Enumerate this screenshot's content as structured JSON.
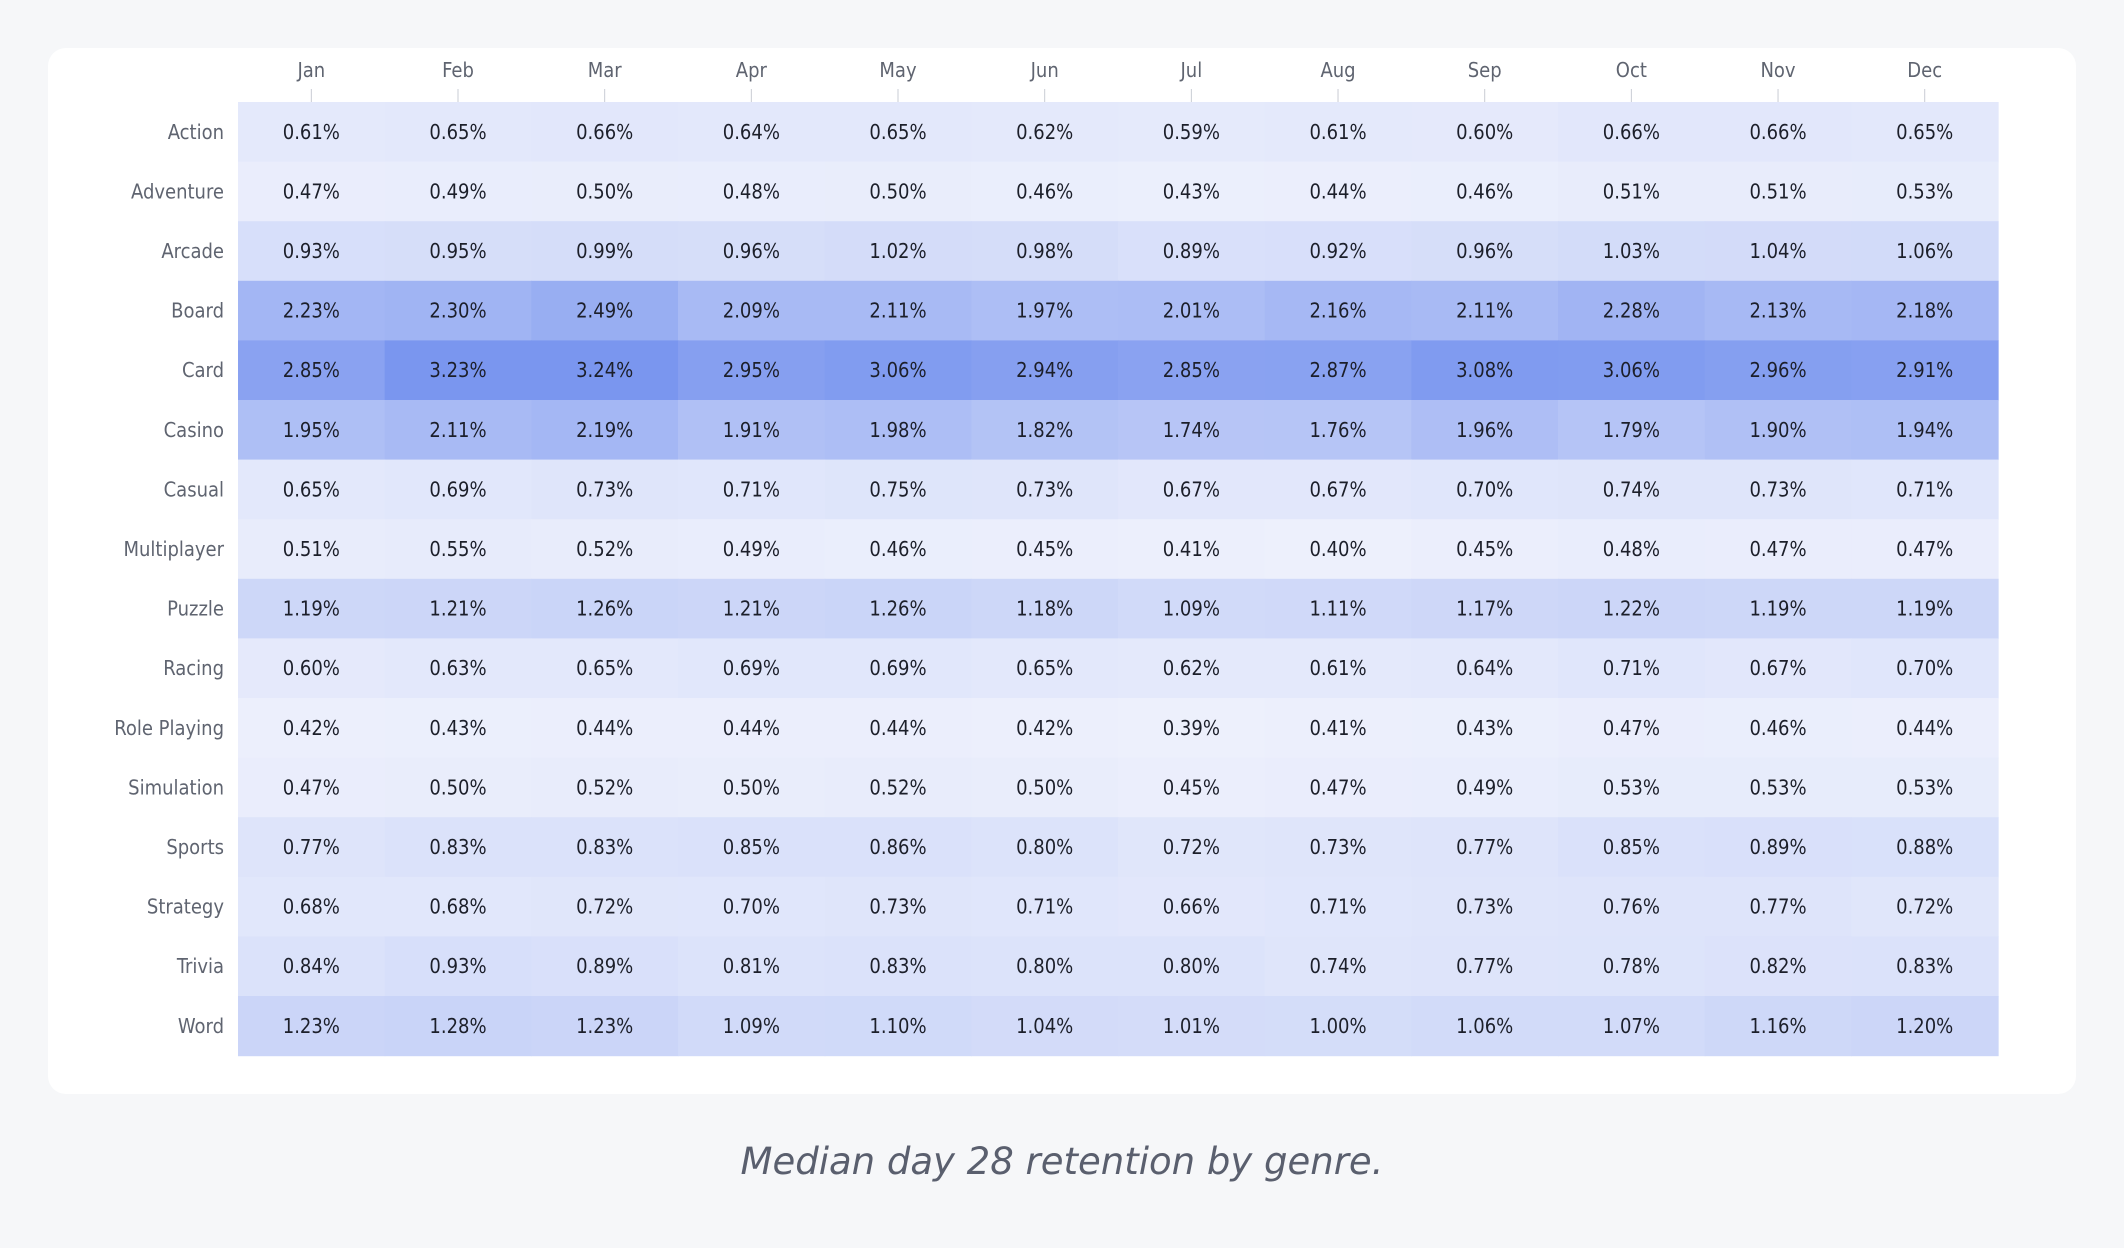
{
  "caption": "Median day 28 retention by genre.",
  "colors": {
    "background": "#f6f7f9",
    "card": "#ffffff",
    "scale_low": "#edf0fc",
    "scale_high": "#7a96ef",
    "cell_text": "#1c1f2a",
    "axis_text": "#5f6470"
  },
  "chart_data": {
    "type": "heatmap",
    "x": [
      "Jan",
      "Feb",
      "Mar",
      "Apr",
      "May",
      "Jun",
      "Jul",
      "Aug",
      "Sep",
      "Oct",
      "Nov",
      "Dec"
    ],
    "y": [
      "Action",
      "Adventure",
      "Arcade",
      "Board",
      "Card",
      "Casino",
      "Casual",
      "Multiplayer",
      "Puzzle",
      "Racing",
      "Role Playing",
      "Simulation",
      "Sports",
      "Strategy",
      "Trivia",
      "Word"
    ],
    "labels": [
      [
        "0.61%",
        "0.65%",
        "0.66%",
        "0.64%",
        "0.65%",
        "0.62%",
        "0.59%",
        "0.61%",
        "0.60%",
        "0.66%",
        "0.66%",
        "0.65%"
      ],
      [
        "0.47%",
        "0.49%",
        "0.50%",
        "0.48%",
        "0.50%",
        "0.46%",
        "0.43%",
        "0.44%",
        "0.46%",
        "0.51%",
        "0.51%",
        "0.53%"
      ],
      [
        "0.93%",
        "0.95%",
        "0.99%",
        "0.96%",
        "1.02%",
        "0.98%",
        "0.89%",
        "0.92%",
        "0.96%",
        "1.03%",
        "1.04%",
        "1.06%"
      ],
      [
        "2.23%",
        "2.30%",
        "2.49%",
        "2.09%",
        "2.11%",
        "1.97%",
        "2.01%",
        "2.16%",
        "2.11%",
        "2.28%",
        "2.13%",
        "2.18%"
      ],
      [
        "2.85%",
        "3.23%",
        "3.24%",
        "2.95%",
        "3.06%",
        "2.94%",
        "2.85%",
        "2.87%",
        "3.08%",
        "3.06%",
        "2.96%",
        "2.91%"
      ],
      [
        "1.95%",
        "2.11%",
        "2.19%",
        "1.91%",
        "1.98%",
        "1.82%",
        "1.74%",
        "1.76%",
        "1.96%",
        "1.79%",
        "1.90%",
        "1.94%"
      ],
      [
        "0.65%",
        "0.69%",
        "0.73%",
        "0.71%",
        "0.75%",
        "0.73%",
        "0.67%",
        "0.67%",
        "0.70%",
        "0.74%",
        "0.73%",
        "0.71%"
      ],
      [
        "0.51%",
        "0.55%",
        "0.52%",
        "0.49%",
        "0.46%",
        "0.45%",
        "0.41%",
        "0.40%",
        "0.45%",
        "0.48%",
        "0.47%",
        "0.47%"
      ],
      [
        "1.19%",
        "1.21%",
        "1.26%",
        "1.21%",
        "1.26%",
        "1.18%",
        "1.09%",
        "1.11%",
        "1.17%",
        "1.22%",
        "1.19%",
        "1.19%"
      ],
      [
        "0.60%",
        "0.63%",
        "0.65%",
        "0.69%",
        "0.69%",
        "0.65%",
        "0.62%",
        "0.61%",
        "0.64%",
        "0.71%",
        "0.67%",
        "0.70%"
      ],
      [
        "0.42%",
        "0.43%",
        "0.44%",
        "0.44%",
        "0.44%",
        "0.42%",
        "0.39%",
        "0.41%",
        "0.43%",
        "0.47%",
        "0.46%",
        "0.44%"
      ],
      [
        "0.47%",
        "0.50%",
        "0.52%",
        "0.50%",
        "0.52%",
        "0.50%",
        "0.45%",
        "0.47%",
        "0.49%",
        "0.53%",
        "0.53%",
        "0.53%"
      ],
      [
        "0.77%",
        "0.83%",
        "0.83%",
        "0.85%",
        "0.86%",
        "0.80%",
        "0.72%",
        "0.73%",
        "0.77%",
        "0.85%",
        "0.89%",
        "0.88%"
      ],
      [
        "0.68%",
        "0.68%",
        "0.72%",
        "0.70%",
        "0.73%",
        "0.71%",
        "0.66%",
        "0.71%",
        "0.73%",
        "0.76%",
        "0.77%",
        "0.72%"
      ],
      [
        "0.84%",
        "0.93%",
        "0.89%",
        "0.81%",
        "0.83%",
        "0.80%",
        "0.80%",
        "0.74%",
        "0.77%",
        "0.78%",
        "0.82%",
        "0.83%"
      ],
      [
        "1.23%",
        "1.28%",
        "1.23%",
        "1.09%",
        "1.10%",
        "1.04%",
        "1.01%",
        "1.00%",
        "1.06%",
        "1.07%",
        "1.16%",
        "1.20%"
      ]
    ],
    "value_range": [
      0.39,
      3.24
    ],
    "grid": false,
    "legend": "none"
  }
}
